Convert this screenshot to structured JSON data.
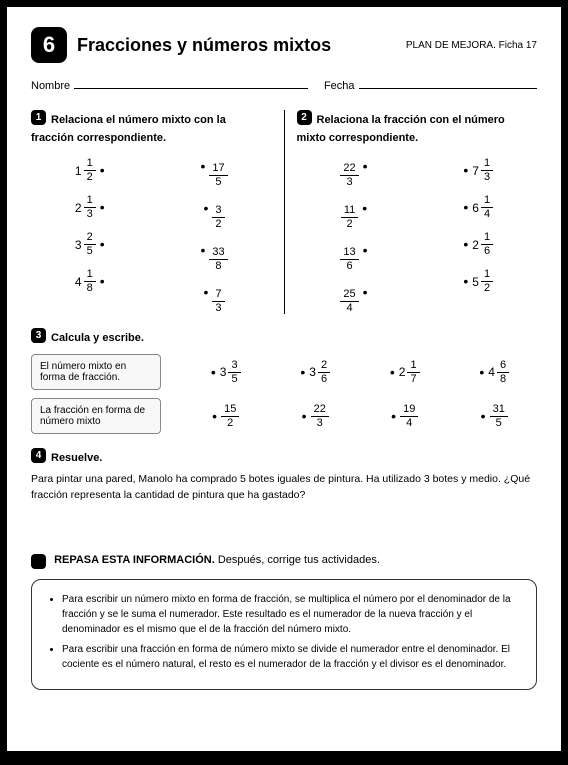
{
  "header": {
    "number": "6",
    "title": "Fracciones y números mixtos",
    "plan_prefix": "PLAN DE MEJORA. Ficha ",
    "plan_number": "17"
  },
  "fields": {
    "name_label": "Nombre",
    "date_label": "Fecha"
  },
  "q1": {
    "num": "1",
    "text": "Relaciona el número mixto con la fracción correspondiente.",
    "left": [
      {
        "w": "1",
        "n": "1",
        "d": "2"
      },
      {
        "w": "2",
        "n": "1",
        "d": "3"
      },
      {
        "w": "3",
        "n": "2",
        "d": "5"
      },
      {
        "w": "4",
        "n": "1",
        "d": "8"
      }
    ],
    "right": [
      {
        "n": "17",
        "d": "5"
      },
      {
        "n": "3",
        "d": "2"
      },
      {
        "n": "33",
        "d": "8"
      },
      {
        "n": "7",
        "d": "3"
      }
    ]
  },
  "q2": {
    "num": "2",
    "text": "Relaciona la fracción con el número mixto correspondiente.",
    "left": [
      {
        "n": "22",
        "d": "3"
      },
      {
        "n": "11",
        "d": "2"
      },
      {
        "n": "13",
        "d": "6"
      },
      {
        "n": "25",
        "d": "4"
      }
    ],
    "right": [
      {
        "w": "7",
        "n": "1",
        "d": "3"
      },
      {
        "w": "6",
        "n": "1",
        "d": "4"
      },
      {
        "w": "2",
        "n": "1",
        "d": "6"
      },
      {
        "w": "5",
        "n": "1",
        "d": "2"
      }
    ]
  },
  "q3": {
    "num": "3",
    "text": "Calcula y escribe.",
    "row1_label": "El número mixto en forma de fracción.",
    "row1": [
      {
        "w": "3",
        "n": "3",
        "d": "5"
      },
      {
        "w": "3",
        "n": "2",
        "d": "6"
      },
      {
        "w": "2",
        "n": "1",
        "d": "7"
      },
      {
        "w": "4",
        "n": "6",
        "d": "8"
      }
    ],
    "row2_label": "La fracción en forma de número mixto",
    "row2": [
      {
        "n": "15",
        "d": "2"
      },
      {
        "n": "22",
        "d": "3"
      },
      {
        "n": "19",
        "d": "4"
      },
      {
        "n": "31",
        "d": "5"
      }
    ]
  },
  "q4": {
    "num": "4",
    "text": "Resuelve.",
    "problem": "Para pintar una pared, Manolo ha comprado 5 botes iguales de pintura. Ha utilizado 3 botes y medio. ¿Qué fracción representa la cantidad de pintura que ha gastado?"
  },
  "repasa": {
    "title_bold": "REPASA ESTA INFORMACIÓN.",
    "title_rest": " Después, corrige tus actividades.",
    "items": [
      "Para escribir un número mixto en forma de fracción, se multiplica el número por el denominador de la fracción y se le suma el numerador. Este resultado es el numerador de la nueva fracción y el denominador es el mismo que el de la fracción del número mixto.",
      "Para escribir una fracción en forma de número mixto se divide el numerador entre el denominador. El cociente es el número natural, el resto es el numerador de la fracción y el divisor es el denominador."
    ]
  }
}
